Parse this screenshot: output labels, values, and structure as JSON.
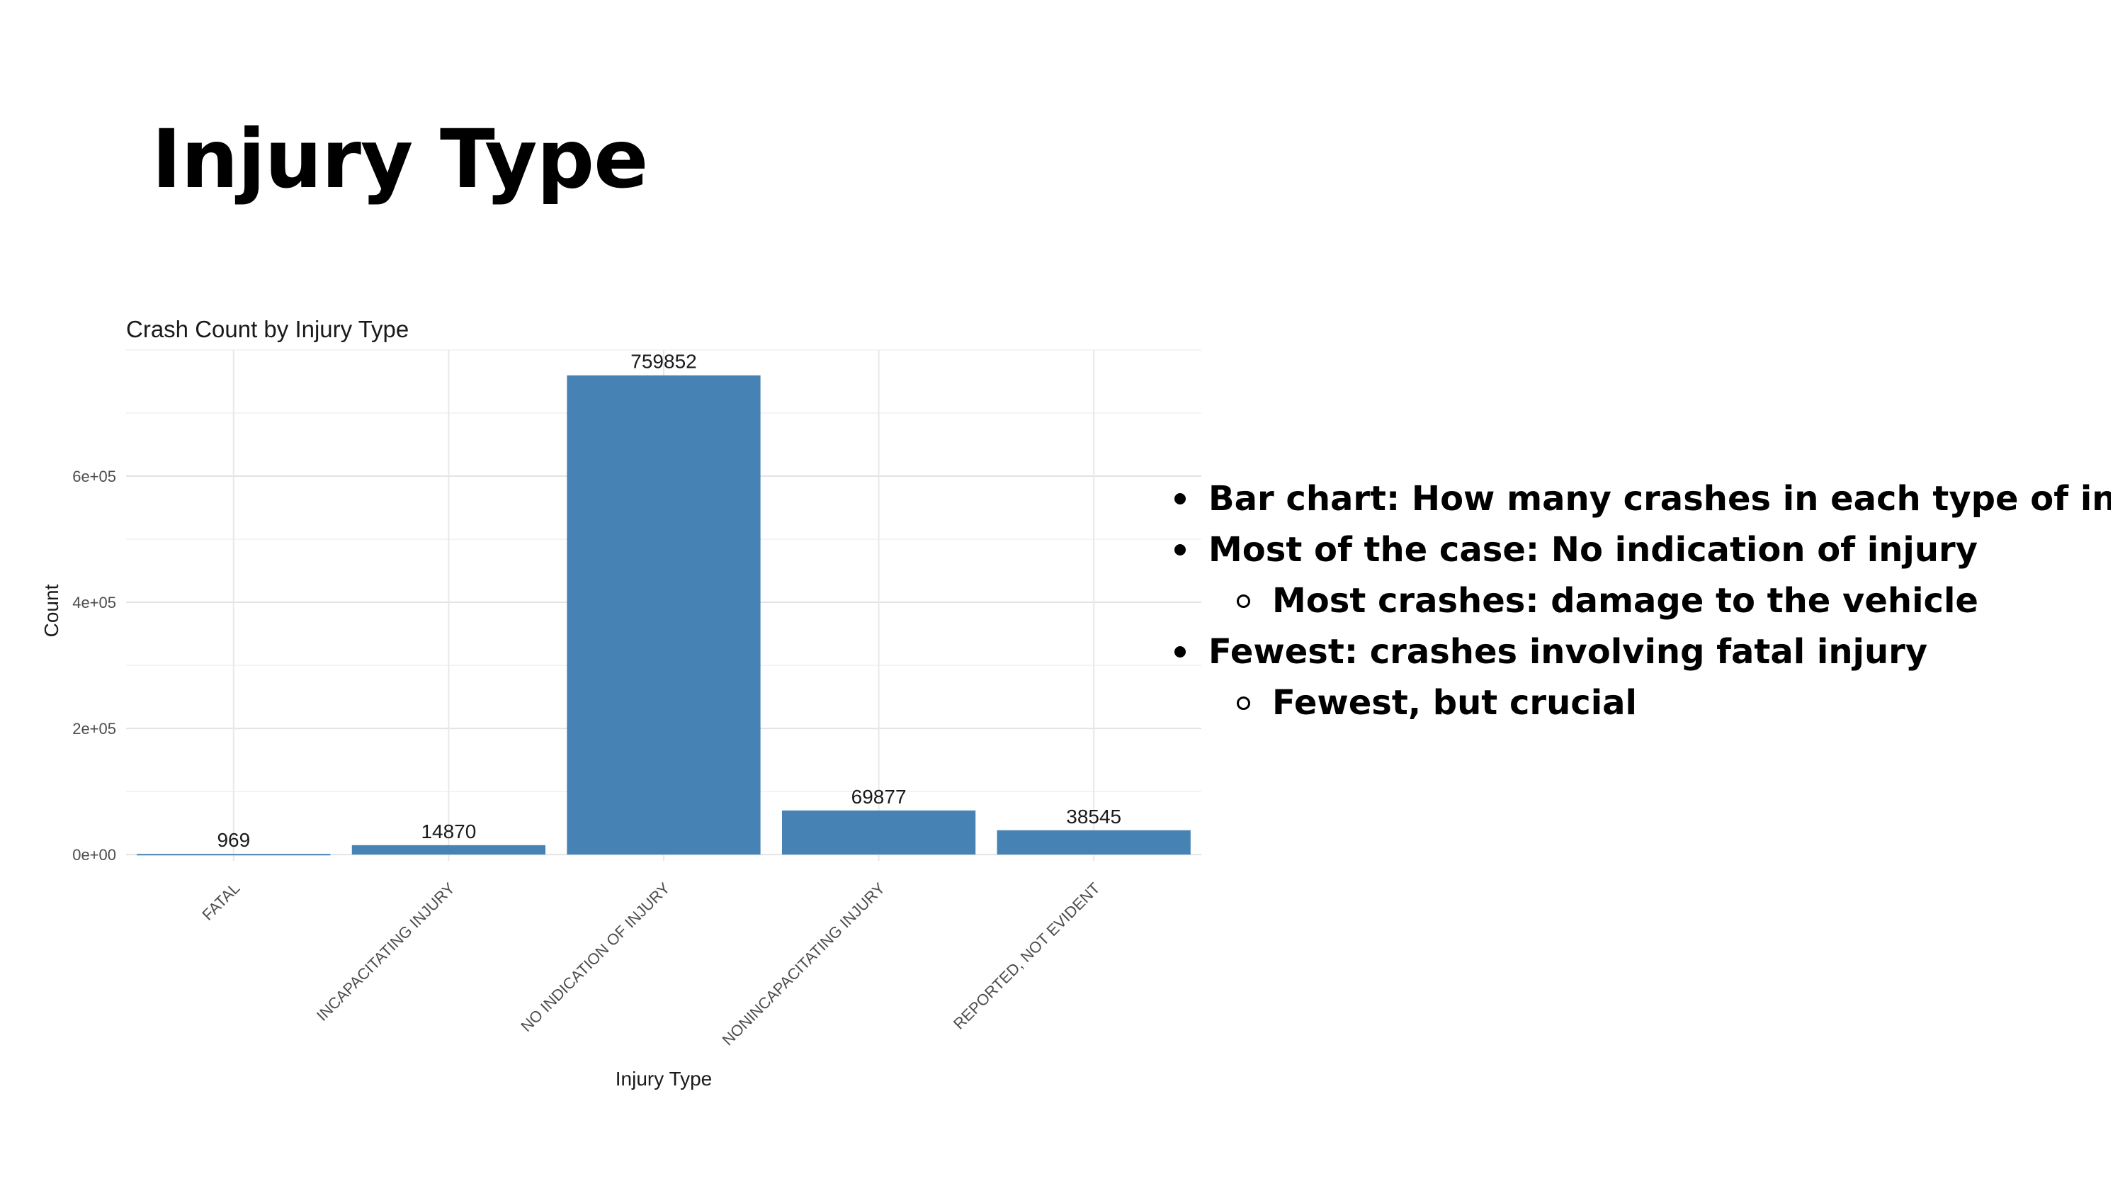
{
  "slide": {
    "title": "Injury Type"
  },
  "chart_data": {
    "type": "bar",
    "title": "Crash Count by Injury Type",
    "xlabel": "Injury Type",
    "ylabel": "Count",
    "categories": [
      "FATAL",
      "INCAPACITATING INJURY",
      "NO INDICATION OF INJURY",
      "NONINCAPACITATING INJURY",
      "REPORTED, NOT EVIDENT"
    ],
    "values": [
      969,
      14870,
      759852,
      69877,
      38545
    ],
    "data_labels": [
      "969",
      "14870",
      "759852",
      "69877",
      "38545"
    ],
    "yticks": [
      0,
      200000,
      400000,
      600000
    ],
    "ytick_labels": [
      "0e+00",
      "2e+05",
      "4e+05",
      "6e+05"
    ],
    "ylim": [
      -10000,
      800000
    ],
    "grid": true,
    "bar_color": "#4682B4"
  },
  "notes": {
    "bullets": [
      {
        "level": 1,
        "text": "Bar chart: How many crashes in each type of injury?"
      },
      {
        "level": 1,
        "text": "Most of the case: No indication of injury"
      },
      {
        "level": 2,
        "text": "Most crashes: damage to the vehicle"
      },
      {
        "level": 1,
        "text": "Fewest: crashes involving fatal injury"
      },
      {
        "level": 2,
        "text": "Fewest, but crucial"
      }
    ]
  }
}
